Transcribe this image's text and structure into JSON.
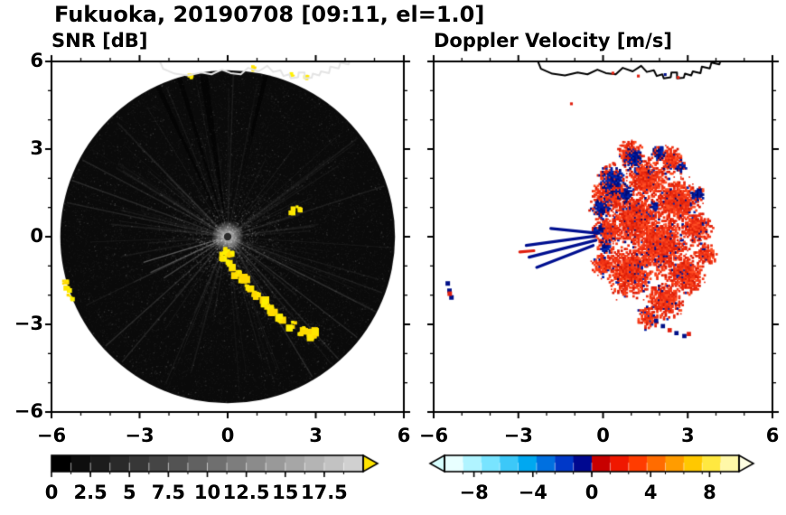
{
  "title": "Fukuoka, 20190708 [09:11, el=1.0]",
  "meta": {
    "site": "Fukuoka",
    "date": "20190708",
    "time": "09:11",
    "elevation": "1.0"
  },
  "panels": {
    "snr": {
      "subtitle": "SNR [dB]",
      "xtick_labels": [
        "−6",
        "−3",
        "0",
        "3",
        "6"
      ],
      "ytick_labels": [
        "6",
        "3",
        "0",
        "−3",
        "−6"
      ]
    },
    "velocity": {
      "subtitle": "Doppler Velocity [m/s]",
      "xtick_labels": [
        "−6",
        "−3",
        "0",
        "3",
        "6"
      ]
    }
  },
  "coastline": [
    [
      -2.35,
      6.1
    ],
    [
      -2.2,
      5.75
    ],
    [
      -1.8,
      5.58
    ],
    [
      -1.35,
      5.52
    ],
    [
      -0.9,
      5.62
    ],
    [
      -0.55,
      5.56
    ],
    [
      -0.2,
      5.72
    ],
    [
      0.1,
      5.6
    ],
    [
      0.45,
      5.56
    ],
    [
      0.7,
      5.78
    ],
    [
      1.05,
      5.66
    ],
    [
      1.35,
      5.85
    ],
    [
      1.55,
      5.64
    ],
    [
      1.8,
      5.7
    ],
    [
      1.9,
      5.5
    ],
    [
      2.1,
      5.56
    ],
    [
      2.15,
      5.42
    ],
    [
      2.4,
      5.46
    ],
    [
      2.42,
      5.62
    ],
    [
      2.62,
      5.62
    ],
    [
      2.62,
      5.42
    ],
    [
      2.86,
      5.44
    ],
    [
      2.9,
      5.58
    ],
    [
      3.12,
      5.52
    ],
    [
      3.18,
      5.66
    ],
    [
      3.45,
      5.6
    ],
    [
      3.5,
      5.82
    ],
    [
      3.78,
      5.76
    ],
    [
      3.84,
      5.96
    ],
    [
      4.12,
      5.9
    ],
    [
      4.18,
      6.1
    ]
  ],
  "chart_data": [
    {
      "type": "heatmap",
      "subtype": "radar_ppi",
      "title": "SNR [dB]",
      "xlim": [
        -6,
        6
      ],
      "ylim": [
        -6,
        6
      ],
      "xticks": [
        -6,
        -3,
        0,
        3,
        6
      ],
      "yticks": [
        -6,
        -3,
        0,
        3,
        6
      ],
      "radar": {
        "center": [
          0,
          0
        ],
        "radius": 5.7,
        "background": "#0a0a0a"
      },
      "bright_beams": [
        [
          197,
          0.3,
          3.0,
          0.3
        ],
        [
          205,
          0.3,
          2.9,
          0.25
        ],
        [
          213,
          0.2,
          2.6,
          0.2
        ],
        [
          222,
          0.3,
          5.6,
          0.12
        ],
        [
          230,
          0.3,
          5.6,
          0.1
        ],
        [
          152,
          0.3,
          5.6,
          0.1
        ],
        [
          160,
          0.3,
          5.65,
          0.12
        ],
        [
          168,
          0.3,
          5.6,
          0.1
        ],
        [
          301,
          0.3,
          5.6,
          0.12
        ],
        [
          312,
          0.3,
          5.65,
          0.1
        ],
        [
          322,
          0.3,
          5.6,
          0.12
        ],
        [
          333,
          0.3,
          5.65,
          0.1
        ],
        [
          340,
          0.3,
          5.6,
          0.08
        ],
        [
          18,
          0.3,
          5.6,
          0.08
        ],
        [
          88,
          0.3,
          5.65,
          0.07
        ]
      ],
      "blocked_sectors": [
        [
          97,
          100
        ],
        [
          106,
          108
        ],
        [
          114,
          116
        ],
        [
          76,
          78
        ]
      ],
      "clutter_colors": [
        "#ffe600",
        "#ffd900",
        "#fff200"
      ],
      "clutter_chains": [
        {
          "r": 0.17,
          "haze": true,
          "pts": [
            [
              -0.12,
              -0.68
            ],
            [
              0.08,
              -0.95
            ],
            [
              0.32,
              -1.22
            ],
            [
              0.55,
              -1.42
            ],
            [
              0.72,
              -1.72
            ],
            [
              0.95,
              -2.0
            ],
            [
              1.25,
              -2.28
            ],
            [
              1.5,
              -2.52
            ],
            [
              1.85,
              -2.82
            ],
            [
              2.2,
              -3.02
            ],
            [
              2.55,
              -3.22
            ],
            [
              2.9,
              -3.35
            ],
            [
              3.05,
              -3.3
            ]
          ]
        },
        {
          "r": 0.12,
          "pts": [
            [
              2.15,
              0.88
            ],
            [
              2.42,
              0.96
            ]
          ]
        },
        {
          "r": 0.12,
          "pts": [
            [
              -5.52,
              -1.58
            ],
            [
              -5.45,
              -1.82
            ],
            [
              -5.36,
              -2.06
            ]
          ]
        },
        {
          "r": 0.09,
          "pts": [
            [
              -1.28,
              5.5
            ],
            [
              0.9,
              5.75
            ],
            [
              2.2,
              5.55
            ],
            [
              2.68,
              5.45
            ]
          ]
        },
        {
          "r": 0.13,
          "pts": [
            [
              -0.05,
              -0.5
            ],
            [
              0.12,
              -0.6
            ]
          ]
        }
      ],
      "colorbar": {
        "min": 0,
        "max": 20,
        "n_steps": 16,
        "tick_values": [
          0,
          2.5,
          5,
          7.5,
          10,
          12.5,
          15,
          17.5
        ],
        "tick_labels": [
          "0",
          "2.5",
          "5",
          "7.5",
          "10",
          "12.5",
          "15",
          "17.5"
        ],
        "cmap": "grayscale",
        "over_color": "#ffe400"
      }
    },
    {
      "type": "heatmap",
      "subtype": "radar_ppi",
      "title": "Doppler Velocity [m/s]",
      "xlim": [
        -6,
        6
      ],
      "ylim": [
        -6,
        6
      ],
      "xticks": [
        -6,
        -3,
        0,
        3,
        6
      ],
      "echo": {
        "red_blobs": [
          [
            1.2,
            0.6,
            1.5
          ],
          [
            2.0,
            -0.3,
            1.6
          ],
          [
            1.0,
            -1.2,
            1.35
          ],
          [
            2.6,
            1.2,
            1.2
          ],
          [
            0.35,
            1.5,
            1.05
          ],
          [
            1.5,
            2.0,
            1.15
          ],
          [
            2.9,
            -1.3,
            1.05
          ],
          [
            2.2,
            -2.2,
            0.95
          ],
          [
            0.2,
            0.2,
            0.85
          ],
          [
            3.3,
            0.3,
            0.9
          ],
          [
            1.0,
            2.8,
            0.75
          ],
          [
            2.4,
            2.6,
            0.7
          ],
          [
            0.05,
            -0.95,
            0.65
          ],
          [
            1.6,
            -2.75,
            0.6
          ],
          [
            3.6,
            -0.6,
            0.6
          ]
        ],
        "blue_blobs": [
          [
            0.35,
            1.95,
            0.8
          ],
          [
            1.1,
            2.65,
            0.65
          ],
          [
            -0.05,
            1.0,
            0.6
          ],
          [
            0.8,
            1.45,
            0.5
          ],
          [
            2.0,
            2.85,
            0.45
          ],
          [
            0.1,
            -0.35,
            0.45
          ],
          [
            3.35,
            1.45,
            0.4
          ],
          [
            1.85,
            1.05,
            0.35
          ],
          [
            -0.15,
            0.25,
            0.4
          ],
          [
            2.75,
            2.4,
            0.35
          ]
        ],
        "red_colors": [
          "#e82810",
          "#f43b1b",
          "#d91c06",
          "#ff4f24",
          "#ef3213"
        ],
        "navy_colors": [
          "#000e86",
          "#001ca0",
          "#002cb4",
          "#000a70"
        ]
      },
      "streaks": [
        [
          -0.25,
          -0.12,
          -2.62,
          -0.7,
          "n"
        ],
        [
          -0.3,
          0.02,
          -2.72,
          -0.3,
          "n"
        ],
        [
          -0.35,
          -0.3,
          -2.35,
          -1.05,
          "n"
        ],
        [
          -0.2,
          0.12,
          -1.85,
          0.28,
          "n"
        ],
        [
          -2.95,
          -0.52,
          -2.45,
          -0.48,
          "r"
        ]
      ],
      "spot_clusters": [
        {
          "size": 0.16,
          "pts": [
            [
              -5.5,
              -1.6,
              "n"
            ],
            [
              -5.44,
              -1.85,
              "n"
            ],
            [
              -5.37,
              -2.08,
              "n"
            ],
            [
              -5.43,
              -1.95,
              "r"
            ]
          ]
        },
        {
          "size": 0.15,
          "pts": [
            [
              1.88,
              -2.88,
              "n"
            ],
            [
              2.12,
              -3.06,
              "n"
            ],
            [
              2.36,
              -3.2,
              "r"
            ],
            [
              2.6,
              -3.3,
              "n"
            ],
            [
              2.88,
              -3.4,
              "n"
            ],
            [
              3.04,
              -3.33,
              "r"
            ]
          ]
        },
        {
          "size": 0.1,
          "pts": [
            [
              -1.12,
              4.55,
              "r"
            ],
            [
              0.35,
              5.6,
              "r"
            ],
            [
              1.25,
              5.5,
              "r"
            ],
            [
              2.2,
              5.55,
              "n"
            ],
            [
              2.66,
              5.45,
              "r"
            ]
          ]
        }
      ],
      "colorbar": {
        "min": -10,
        "max": 10,
        "tick_values": [
          -8,
          -4,
          0,
          4,
          8
        ],
        "tick_labels": [
          "−8",
          "−4",
          "0",
          "4",
          "8"
        ],
        "colors": [
          "#e8ffff",
          "#b0f4ff",
          "#78e4ff",
          "#3cc8f8",
          "#00a8f0",
          "#0070e0",
          "#0038c8",
          "#000890",
          "#c80000",
          "#f01800",
          "#ff3c00",
          "#ff6c00",
          "#ff9c00",
          "#ffc800",
          "#ffe840",
          "#fff8a8"
        ],
        "under_color": "#d8ffff",
        "over_color": "#ffffe2"
      }
    }
  ]
}
